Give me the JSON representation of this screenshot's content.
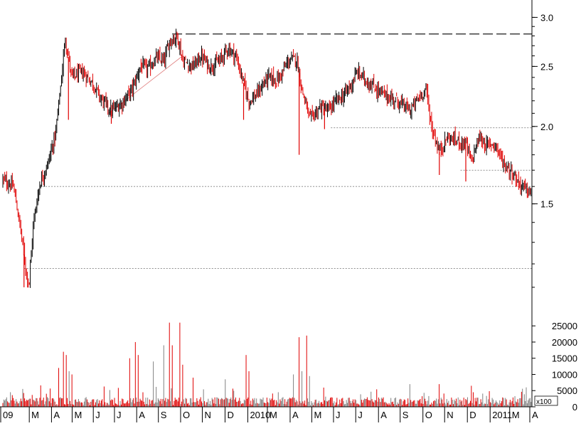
{
  "chart_data": {
    "type": "candlestick",
    "colors": {
      "up": "#000000",
      "down": "#e00000",
      "volume_neutral": "#808080",
      "ref_line": "#808080",
      "resistance": "#000000",
      "trendline": "#e08080"
    },
    "price_axis": {
      "scale": "log",
      "ylim": [
        1.0,
        3.2
      ],
      "ticks": [
        3.0,
        2.5,
        2.0,
        1.5
      ],
      "tick_labels": [
        "3.0",
        "2.5",
        "2.0",
        "1.5"
      ]
    },
    "volume_axis": {
      "ylim": [
        0,
        29000
      ],
      "ticks": [
        0,
        5000,
        10000,
        15000,
        20000,
        25000
      ],
      "tick_labels": [
        "0",
        "5000",
        "10000",
        "15000",
        "20000",
        "25000"
      ],
      "multiplier_label": "x100"
    },
    "x_axis": {
      "labels": [
        "09",
        "M",
        "A",
        "M",
        "J",
        "J",
        "A",
        "S",
        "O",
        "N",
        "D",
        "2010",
        "M",
        "A",
        "M",
        "J",
        "J",
        "A",
        "S",
        "O",
        "N",
        "D",
        "2011",
        "M",
        "A"
      ],
      "positions": [
        0.0,
        0.054,
        0.096,
        0.135,
        0.175,
        0.215,
        0.257,
        0.298,
        0.34,
        0.381,
        0.424,
        0.467,
        0.504,
        0.547,
        0.588,
        0.629,
        0.671,
        0.714,
        0.755,
        0.798,
        0.839,
        0.882,
        0.925,
        0.962,
        1.0
      ]
    },
    "price_path": [
      [
        0.0,
        1.64
      ],
      [
        0.02,
        1.6
      ],
      [
        0.033,
        1.37
      ],
      [
        0.045,
        1.15
      ],
      [
        0.05,
        1.12
      ],
      [
        0.058,
        1.4
      ],
      [
        0.07,
        1.62
      ],
      [
        0.085,
        1.74
      ],
      [
        0.1,
        1.95
      ],
      [
        0.11,
        2.35
      ],
      [
        0.118,
        2.78
      ],
      [
        0.13,
        2.4
      ],
      [
        0.15,
        2.45
      ],
      [
        0.17,
        2.35
      ],
      [
        0.185,
        2.22
      ],
      [
        0.205,
        2.12
      ],
      [
        0.225,
        2.18
      ],
      [
        0.245,
        2.3
      ],
      [
        0.26,
        2.5
      ],
      [
        0.275,
        2.48
      ],
      [
        0.29,
        2.58
      ],
      [
        0.305,
        2.55
      ],
      [
        0.315,
        2.75
      ],
      [
        0.33,
        2.8
      ],
      [
        0.34,
        2.55
      ],
      [
        0.36,
        2.5
      ],
      [
        0.375,
        2.6
      ],
      [
        0.39,
        2.5
      ],
      [
        0.41,
        2.55
      ],
      [
        0.425,
        2.68
      ],
      [
        0.44,
        2.6
      ],
      [
        0.455,
        2.35
      ],
      [
        0.465,
        2.2
      ],
      [
        0.48,
        2.25
      ],
      [
        0.5,
        2.4
      ],
      [
        0.52,
        2.38
      ],
      [
        0.54,
        2.55
      ],
      [
        0.555,
        2.58
      ],
      [
        0.565,
        2.3
      ],
      [
        0.58,
        2.05
      ],
      [
        0.6,
        2.15
      ],
      [
        0.615,
        2.12
      ],
      [
        0.63,
        2.2
      ],
      [
        0.645,
        2.25
      ],
      [
        0.66,
        2.35
      ],
      [
        0.67,
        2.45
      ],
      [
        0.685,
        2.38
      ],
      [
        0.7,
        2.32
      ],
      [
        0.72,
        2.25
      ],
      [
        0.745,
        2.2
      ],
      [
        0.77,
        2.12
      ],
      [
        0.79,
        2.25
      ],
      [
        0.8,
        2.3
      ],
      [
        0.81,
        2.0
      ],
      [
        0.825,
        1.82
      ],
      [
        0.84,
        1.92
      ],
      [
        0.855,
        1.9
      ],
      [
        0.875,
        1.88
      ],
      [
        0.885,
        1.75
      ],
      [
        0.9,
        1.92
      ],
      [
        0.915,
        1.86
      ],
      [
        0.93,
        1.88
      ],
      [
        0.945,
        1.75
      ],
      [
        0.96,
        1.7
      ],
      [
        0.975,
        1.62
      ],
      [
        0.99,
        1.58
      ],
      [
        1.0,
        1.55
      ]
    ],
    "spikes": [
      {
        "x": 0.04,
        "low": 1.1
      },
      {
        "x": 0.124,
        "low": 2.05
      },
      {
        "x": 0.205,
        "low": 2.02
      },
      {
        "x": 0.455,
        "low": 2.05
      },
      {
        "x": 0.56,
        "low": 1.8
      },
      {
        "x": 0.608,
        "low": 1.98
      },
      {
        "x": 0.825,
        "low": 1.67
      },
      {
        "x": 0.875,
        "low": 1.63
      }
    ],
    "reference_lines": [
      {
        "price": 2.82,
        "style": "dashed-long",
        "x_from": 0.32,
        "x_to": 1.0
      },
      {
        "price": 1.99,
        "style": "dotted",
        "x_from": 0.62,
        "x_to": 1.0
      },
      {
        "price": 1.6,
        "style": "dotted",
        "x_from": 0.07,
        "x_to": 1.0
      },
      {
        "price": 1.18,
        "style": "dotted",
        "x_from": 0.04,
        "x_to": 1.0
      },
      {
        "price": 1.7,
        "style": "dotted",
        "x_from": 0.865,
        "x_to": 1.0
      }
    ],
    "trendline": {
      "from": [
        0.2,
        2.1
      ],
      "to": [
        0.34,
        2.6
      ]
    },
    "volume_spikes": [
      {
        "x": 0.105,
        "v": 12000
      },
      {
        "x": 0.115,
        "v": 17000
      },
      {
        "x": 0.12,
        "v": 16000
      },
      {
        "x": 0.125,
        "v": 11000
      },
      {
        "x": 0.13,
        "v": 10000
      },
      {
        "x": 0.24,
        "v": 15000
      },
      {
        "x": 0.25,
        "v": 20000
      },
      {
        "x": 0.255,
        "v": 16000
      },
      {
        "x": 0.285,
        "v": 14000
      },
      {
        "x": 0.305,
        "v": 19000
      },
      {
        "x": 0.315,
        "v": 26000
      },
      {
        "x": 0.32,
        "v": 19000
      },
      {
        "x": 0.335,
        "v": 26000
      },
      {
        "x": 0.34,
        "v": 13000
      },
      {
        "x": 0.36,
        "v": 9000
      },
      {
        "x": 0.42,
        "v": 8500
      },
      {
        "x": 0.46,
        "v": 16000
      },
      {
        "x": 0.465,
        "v": 11000
      },
      {
        "x": 0.55,
        "v": 10000
      },
      {
        "x": 0.56,
        "v": 21500
      },
      {
        "x": 0.565,
        "v": 11000
      },
      {
        "x": 0.575,
        "v": 22000
      },
      {
        "x": 0.58,
        "v": 9500
      },
      {
        "x": 0.77,
        "v": 7000
      },
      {
        "x": 0.825,
        "v": 7000
      },
      {
        "x": 0.885,
        "v": 6500
      },
      {
        "x": 0.99,
        "v": 6000
      }
    ]
  }
}
